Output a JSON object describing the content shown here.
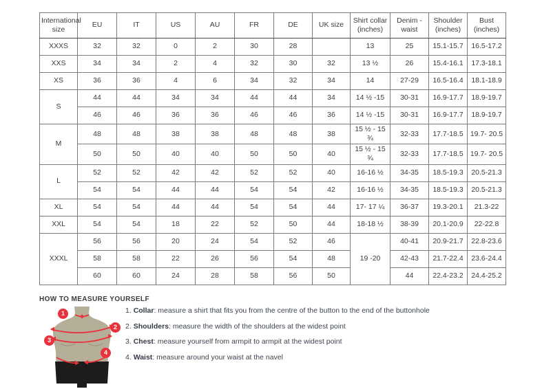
{
  "colors": {
    "accent_red": "#e8323c",
    "torso": "#b5af99",
    "shorts": "#1e1c1a",
    "border_dark": "#454545",
    "border_light": "#7a7a7a",
    "text": "#3c3c3c"
  },
  "size_table": {
    "columns": [
      "International size",
      "EU",
      "IT",
      "US",
      "AU",
      "FR",
      "DE",
      "UK size",
      "Shirt collar (inches)",
      "Denim - waist",
      "Shoulder (inches)",
      "Bust (inches)"
    ],
    "column_keys": [
      "international-size",
      "eu",
      "it",
      "us",
      "au",
      "fr",
      "de",
      "uk-size",
      "shirt-collar",
      "denim-waist",
      "shoulder",
      "bust"
    ],
    "groups": [
      {
        "size": "XXXS",
        "rows": [
          [
            "32",
            "32",
            "0",
            "2",
            "30",
            "28",
            "",
            "13",
            "25",
            "15.1-15.7",
            "16.5-17.2"
          ]
        ]
      },
      {
        "size": "XXS",
        "rows": [
          [
            "34",
            "34",
            "2",
            "4",
            "32",
            "30",
            "32",
            "13 ½",
            "26",
            "15.4-16.1",
            "17.3-18.1"
          ]
        ]
      },
      {
        "size": "XS",
        "rows": [
          [
            "36",
            "36",
            "4",
            "6",
            "34",
            "32",
            "34",
            "14",
            "27-29",
            "16.5-16.4",
            "18.1-18.9"
          ]
        ]
      },
      {
        "size": "S",
        "rows": [
          [
            "44",
            "44",
            "34",
            "34",
            "44",
            "44",
            "34",
            "14 ½ -15",
            "30-31",
            "16.9-17.7",
            "18.9-19.7"
          ],
          [
            "46",
            "46",
            "36",
            "36",
            "46",
            "46",
            "36",
            "14 ½ -15",
            "30-31",
            "16.9-17.7",
            "18.9-19.7"
          ]
        ]
      },
      {
        "size": "M",
        "rows": [
          [
            "48",
            "48",
            "38",
            "38",
            "48",
            "48",
            "38",
            "15 ½ - 15 ¾",
            "32-33",
            "17.7-18.5",
            "19.7- 20.5"
          ],
          [
            "50",
            "50",
            "40",
            "40",
            "50",
            "50",
            "40",
            "15 ½ - 15 ¾",
            "32-33",
            "17.7-18.5",
            "19.7- 20.5"
          ]
        ]
      },
      {
        "size": "L",
        "rows": [
          [
            "52",
            "52",
            "42",
            "42",
            "52",
            "52",
            "40",
            "16-16 ½",
            "34-35",
            "18.5-19.3",
            "20.5-21.3"
          ],
          [
            "54",
            "54",
            "44",
            "44",
            "54",
            "54",
            "42",
            "16-16 ½",
            "34-35",
            "18.5-19.3",
            "20.5-21.3"
          ]
        ]
      },
      {
        "size": "XL",
        "rows": [
          [
            "54",
            "54",
            "44",
            "44",
            "54",
            "54",
            "44",
            "17- 17 ¼",
            "36-37",
            "19.3-20.1",
            "21.3-22"
          ]
        ]
      },
      {
        "size": "XXL",
        "rows": [
          [
            "54",
            "54",
            "18",
            "22",
            "52",
            "50",
            "44",
            "18-18 ½",
            "38-39",
            "20.1-20.9",
            "22-22.8"
          ]
        ]
      },
      {
        "size": "XXXL",
        "collar": "19 -20",
        "rows": [
          [
            "56",
            "56",
            "20",
            "24",
            "54",
            "52",
            "46",
            "40-41",
            "20.9-21.7",
            "22.8-23.6"
          ],
          [
            "58",
            "58",
            "22",
            "26",
            "56",
            "54",
            "48",
            "42-43",
            "21.7-22.4",
            "23.6-24.4"
          ],
          [
            "60",
            "60",
            "24",
            "28",
            "58",
            "56",
            "50",
            "44",
            "22.4-23.2",
            "24.4-25.2"
          ]
        ]
      }
    ]
  },
  "measure_section": {
    "heading": "HOW TO MEASURE YOURSELF",
    "instructions": [
      {
        "number": "1.",
        "term": "Collar",
        "rest": ": measure a shirt that fits you from the centre of the button to the end of the buttonhole"
      },
      {
        "number": "2.",
        "term": "Shoulders",
        "rest": ": measure the width of the shoulders at the widest point"
      },
      {
        "number": "3.",
        "term": "Chest",
        "rest": ": measure yourself from armpit to armpit at the widest point"
      },
      {
        "number": "4.",
        "term": "Waist",
        "rest": ": measure around your waist at the navel"
      }
    ],
    "figure_markers": [
      "1",
      "2",
      "3",
      "4"
    ]
  }
}
